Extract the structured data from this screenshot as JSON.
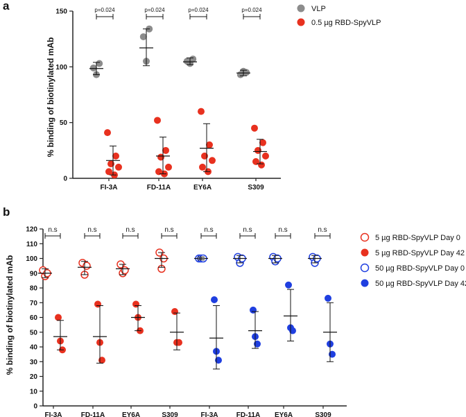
{
  "chart_data": [
    {
      "panel": "a",
      "type": "scatter",
      "ylabel": "% binding of biotinylated mAb",
      "ylim": [
        0,
        150
      ],
      "yticks": [
        "0",
        "50",
        "100",
        "150"
      ],
      "categories": [
        "FI-3A",
        "FD-11A",
        "EY6A",
        "S309"
      ],
      "series": [
        {
          "name": "VLP",
          "color": "#8c8c8c",
          "filled": true,
          "points": [
            [
              99,
              93,
              103
            ],
            [
              127,
              105,
              134
            ],
            [
              105,
              103,
              107
            ],
            [
              93,
              96,
              95
            ]
          ],
          "mean": [
            98.5,
            117,
            104.5,
            94.5
          ],
          "sd_low": [
            93,
            101,
            102,
            92
          ],
          "sd_high": [
            104,
            134,
            108,
            97
          ]
        },
        {
          "name": "0.5 µg RBD-SpyVLP",
          "color": "#e8311f",
          "filled": true,
          "points": [
            [
              41,
              20,
              13,
              10,
              6,
              3
            ],
            [
              52,
              25,
              19,
              10,
              6,
              4
            ],
            [
              60,
              30,
              20,
              16,
              10,
              6
            ],
            [
              45,
              32,
              25,
              20,
              15,
              12
            ]
          ],
          "mean": [
            16,
            20,
            27,
            24
          ],
          "sd_low": [
            3,
            4,
            6,
            13
          ],
          "sd_high": [
            29,
            37,
            49,
            35
          ]
        }
      ],
      "significance": [
        "p=0.024",
        "p=0.024",
        "p=0.024",
        "p=0.024"
      ],
      "legend": [
        "VLP",
        "0.5 µg RBD-SpyVLP"
      ]
    },
    {
      "panel": "b",
      "type": "scatter",
      "ylabel": "% binding of biotinylated mAb",
      "ylim": [
        0,
        120
      ],
      "yticks": [
        "0",
        "10",
        "20",
        "30",
        "40",
        "50",
        "60",
        "70",
        "80",
        "90",
        "100",
        "110",
        "120"
      ],
      "categories": [
        "FI-3A",
        "FD-11A",
        "EY6A",
        "S309",
        "FI-3A",
        "FD-11A",
        "EY6A",
        "S309"
      ],
      "series": [
        {
          "name": "5 µg RBD-SpyVLP Day 0",
          "color": "#e8311f",
          "filled": false,
          "points": [
            [
              92,
              88,
              90
            ],
            [
              97,
              89,
              95
            ],
            [
              96,
              90,
              92
            ],
            [
              104,
              93,
              100
            ]
          ],
          "mean": [
            90,
            94,
            93,
            100
          ],
          "sd_low": [
            87,
            89,
            89,
            94
          ],
          "sd_high": [
            93,
            98,
            96,
            104
          ]
        },
        {
          "name": "5 µg RBD-SpyVLP Day 42",
          "color": "#e8311f",
          "filled": true,
          "points": [
            [
              60,
              44,
              38
            ],
            [
              69,
              43,
              31
            ],
            [
              69,
              60,
              51
            ],
            [
              64,
              43,
              43
            ]
          ],
          "mean": [
            47,
            47,
            60,
            50
          ],
          "sd_low": [
            38,
            29,
            51,
            38
          ],
          "sd_high": [
            58,
            68,
            68,
            63
          ]
        },
        {
          "name": "50 µg RBD-SpyVLP Day 0",
          "color": "#1f3fe0",
          "filled": false,
          "points": [
            [
              100,
              100,
              100
            ],
            [
              101,
              97,
              100
            ],
            [
              101,
              98,
              100
            ],
            [
              101,
              97,
              100
            ]
          ],
          "mean": [
            100,
            100,
            100,
            100
          ],
          "sd_low": [
            99,
            97,
            97,
            97
          ],
          "sd_high": [
            101,
            102,
            102,
            102
          ]
        },
        {
          "name": "50 µg RBD-SpyVLP Day 42",
          "color": "#1f3fe0",
          "filled": true,
          "points": [
            [
              72,
              37,
              31
            ],
            [
              65,
              47,
              42
            ],
            [
              82,
              53,
              51
            ],
            [
              73,
              42,
              35
            ]
          ],
          "mean": [
            46,
            51,
            61,
            50
          ],
          "sd_low": [
            25,
            39,
            44,
            30
          ],
          "sd_high": [
            68,
            64,
            79,
            70
          ]
        }
      ],
      "significance": [
        "n.s",
        "n.s",
        "n.s",
        "n.s",
        "n.s",
        "n.s",
        "n.s",
        "n.s"
      ],
      "legend": [
        "5 µg RBD-SpyVLP Day 0",
        "5 µg RBD-SpyVLP Day 42",
        "50 µg RBD-SpyVLP Day 0",
        "50 µg RBD-SpyVLP Day 42"
      ]
    }
  ]
}
